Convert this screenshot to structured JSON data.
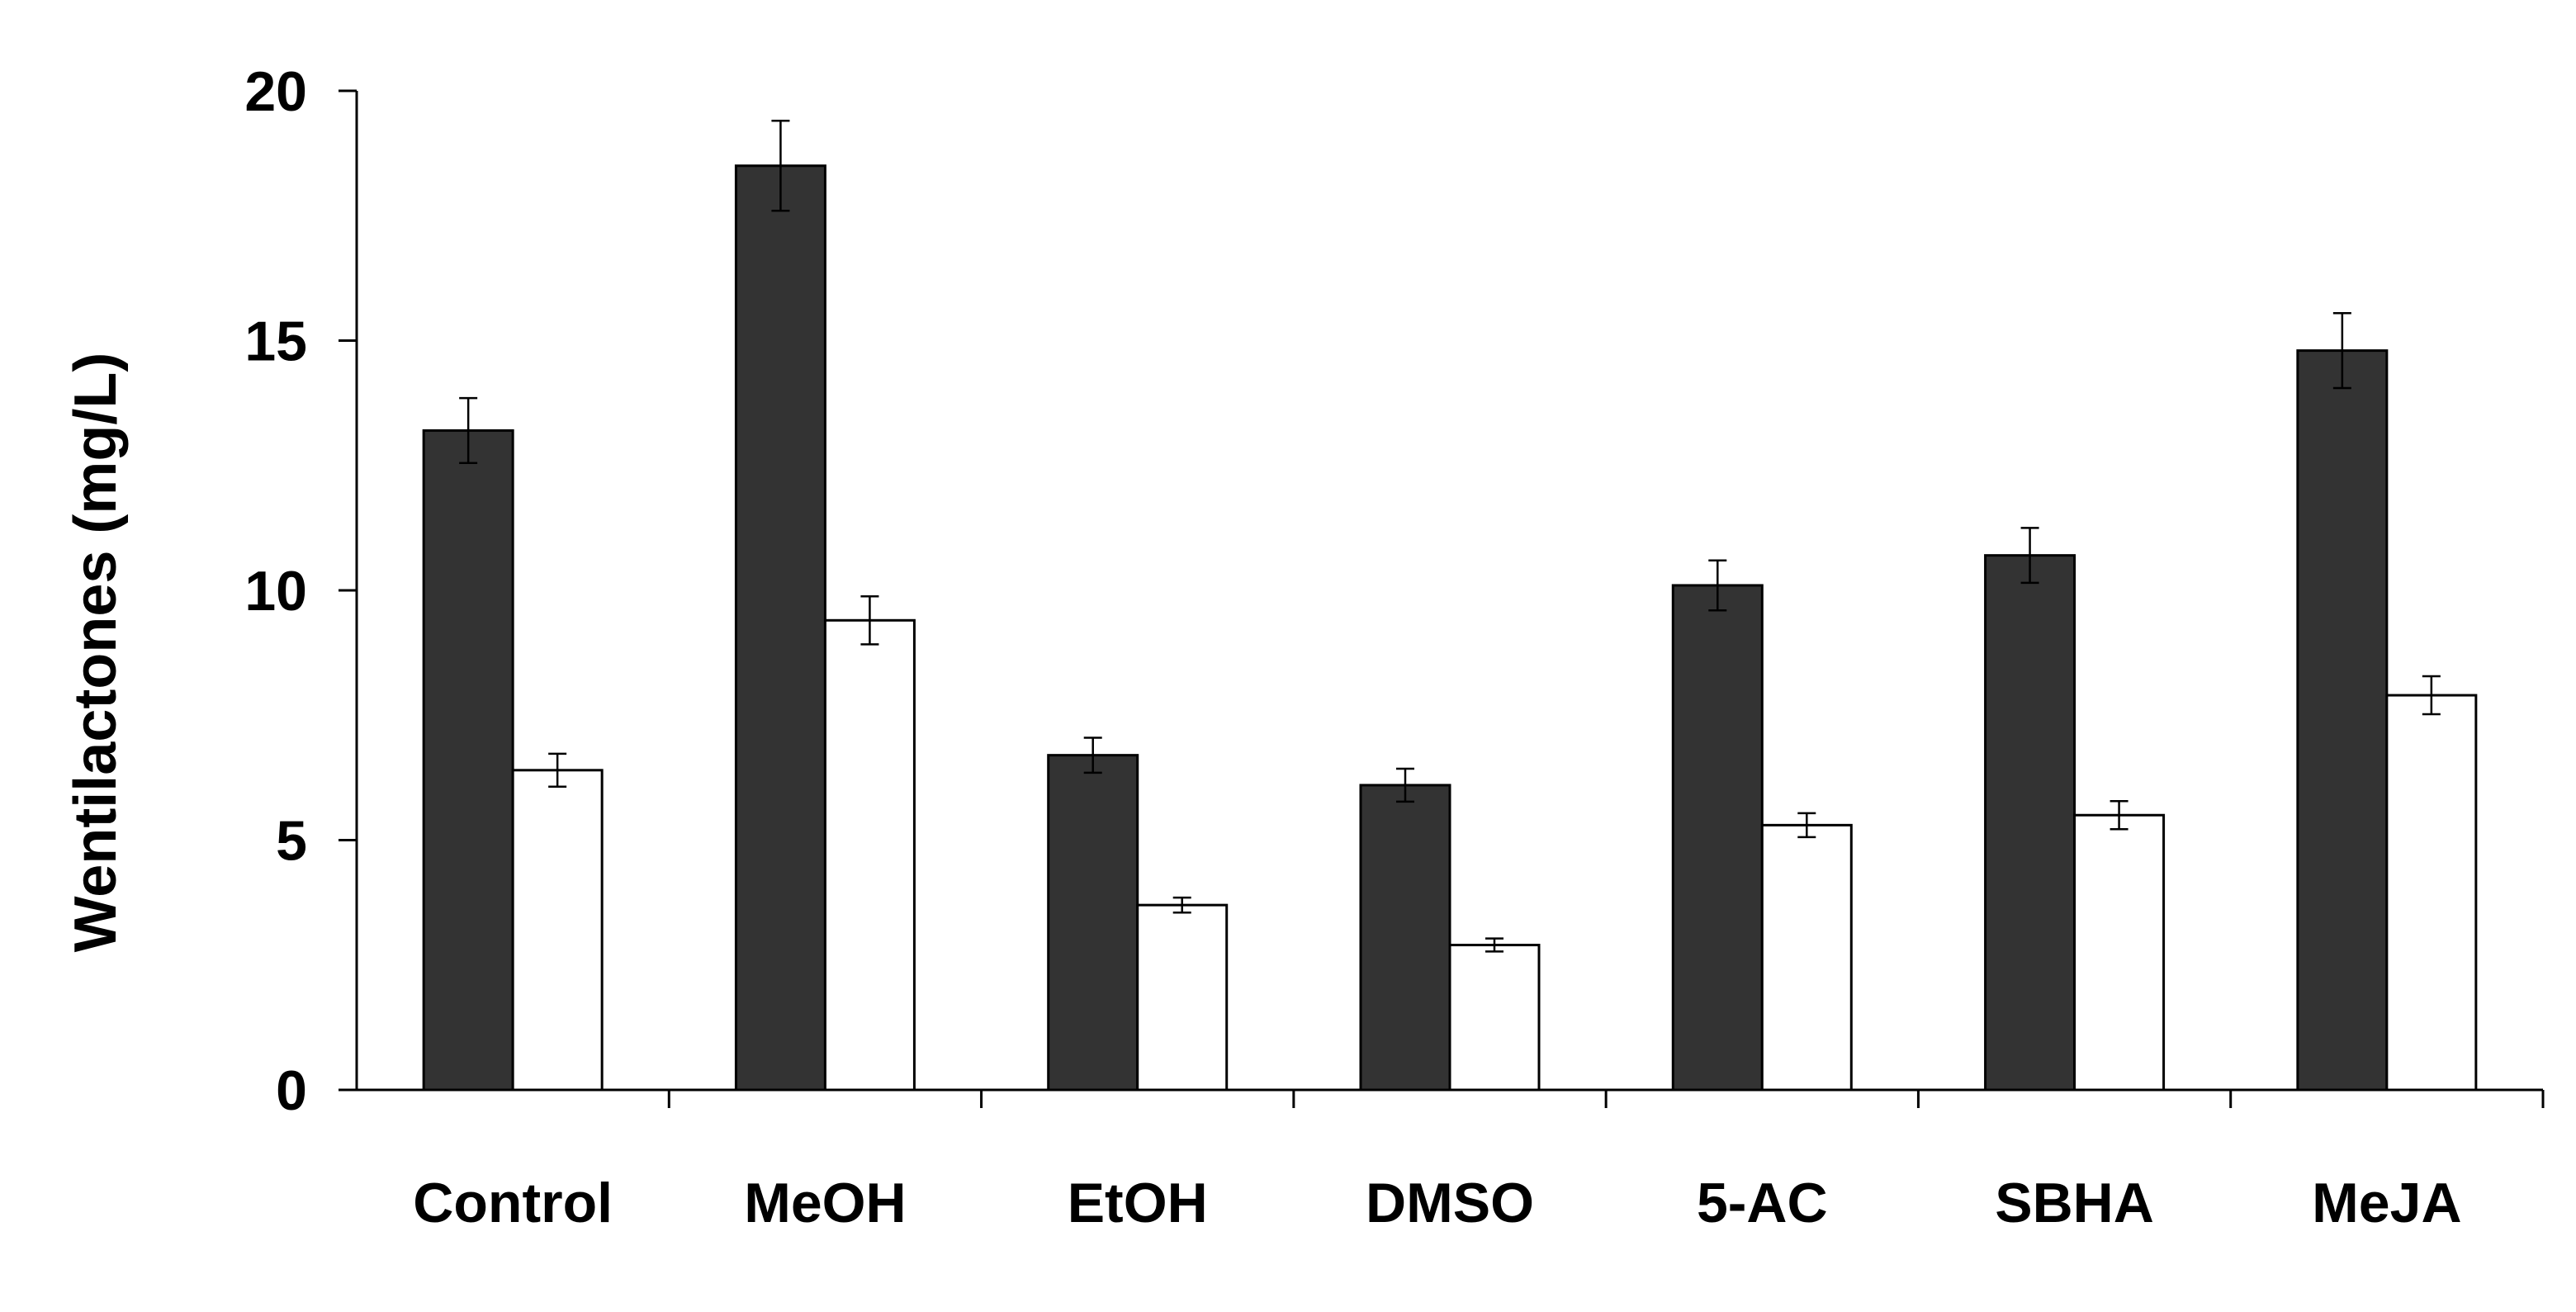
{
  "chart_data": {
    "type": "bar",
    "title": "",
    "xlabel": "",
    "ylabel": "Wentilactones (mg/L)",
    "ylim": [
      0,
      20
    ],
    "yticks": [
      "0",
      "5",
      "10",
      "15",
      "20"
    ],
    "categories": [
      "Control",
      "MeOH",
      "EtOH",
      "DMSO",
      "5-AC",
      "SBHA",
      "MeJA"
    ],
    "series": [
      {
        "color": "#333333",
        "values": [
          13.2,
          18.5,
          6.7,
          6.1,
          10.1,
          10.7,
          14.8
        ],
        "errors": [
          0.65,
          0.9,
          0.35,
          0.33,
          0.5,
          0.55,
          0.75
        ]
      },
      {
        "color": "#ffffff",
        "values": [
          6.4,
          9.4,
          3.7,
          2.9,
          5.3,
          5.5,
          7.9
        ],
        "errors": [
          0.33,
          0.48,
          0.15,
          0.13,
          0.24,
          0.28,
          0.38
        ]
      }
    ],
    "grid": false,
    "legend": "none"
  }
}
